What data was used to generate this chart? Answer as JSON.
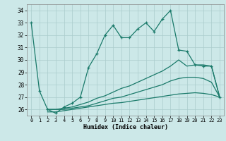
{
  "xlabel": "Humidex (Indice chaleur)",
  "background_color": "#cce8e8",
  "grid_color": "#aacccc",
  "line_color": "#1a7a6a",
  "xlim": [
    -0.5,
    23.5
  ],
  "ylim": [
    25.5,
    34.5
  ],
  "yticks": [
    26,
    27,
    28,
    29,
    30,
    31,
    32,
    33,
    34
  ],
  "xticks": [
    0,
    1,
    2,
    3,
    4,
    5,
    6,
    7,
    8,
    9,
    10,
    11,
    12,
    13,
    14,
    15,
    16,
    17,
    18,
    19,
    20,
    21,
    22,
    23
  ],
  "lines": [
    {
      "x": [
        0,
        1,
        2,
        3,
        4,
        5,
        6,
        7,
        8,
        9,
        10,
        11,
        12,
        13,
        14,
        15,
        16,
        17,
        18,
        19,
        20,
        21,
        22,
        23
      ],
      "y": [
        33.0,
        27.5,
        26.0,
        25.7,
        26.2,
        26.5,
        27.0,
        29.4,
        30.5,
        32.0,
        32.8,
        31.8,
        31.8,
        32.5,
        33.0,
        32.3,
        33.3,
        34.0,
        30.8,
        30.7,
        29.6,
        29.5,
        29.5,
        27.0
      ],
      "marker": true
    },
    {
      "x": [
        2,
        3,
        4,
        5,
        6,
        7,
        8,
        9,
        10,
        11,
        12,
        13,
        14,
        15,
        16,
        17,
        18,
        19,
        20,
        21,
        22,
        23
      ],
      "y": [
        26.0,
        26.0,
        26.1,
        26.2,
        26.4,
        26.6,
        26.9,
        27.1,
        27.4,
        27.7,
        27.9,
        28.2,
        28.5,
        28.8,
        29.1,
        29.5,
        30.0,
        29.5,
        29.6,
        29.6,
        29.5,
        27.0
      ],
      "marker": false
    },
    {
      "x": [
        2,
        3,
        4,
        5,
        6,
        7,
        8,
        9,
        10,
        11,
        12,
        13,
        14,
        15,
        16,
        17,
        18,
        19,
        20,
        21,
        22,
        23
      ],
      "y": [
        26.0,
        26.0,
        26.0,
        26.1,
        26.2,
        26.3,
        26.5,
        26.7,
        26.9,
        27.0,
        27.2,
        27.4,
        27.6,
        27.8,
        28.0,
        28.3,
        28.5,
        28.6,
        28.6,
        28.5,
        28.2,
        27.0
      ],
      "marker": false
    },
    {
      "x": [
        2,
        3,
        4,
        5,
        6,
        7,
        8,
        9,
        10,
        11,
        12,
        13,
        14,
        15,
        16,
        17,
        18,
        19,
        20,
        21,
        22,
        23
      ],
      "y": [
        25.8,
        25.8,
        25.9,
        26.0,
        26.1,
        26.2,
        26.3,
        26.4,
        26.5,
        26.55,
        26.65,
        26.75,
        26.85,
        26.95,
        27.05,
        27.15,
        27.25,
        27.3,
        27.35,
        27.3,
        27.2,
        27.0
      ],
      "marker": false
    }
  ]
}
